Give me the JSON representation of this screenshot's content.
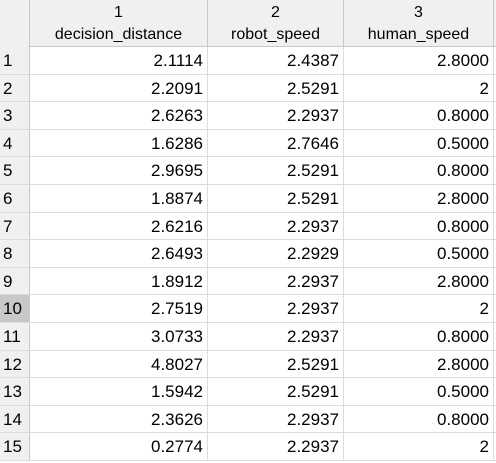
{
  "columns": [
    {
      "number": "1",
      "name": "decision_distance"
    },
    {
      "number": "2",
      "name": "robot_speed"
    },
    {
      "number": "3",
      "name": "human_speed"
    }
  ],
  "selected_row": "10",
  "rows": [
    {
      "index": "1",
      "cells": [
        "2.1114",
        "2.4387",
        "2.8000"
      ]
    },
    {
      "index": "2",
      "cells": [
        "2.2091",
        "2.5291",
        "2"
      ]
    },
    {
      "index": "3",
      "cells": [
        "2.6263",
        "2.2937",
        "0.8000"
      ]
    },
    {
      "index": "4",
      "cells": [
        "1.6286",
        "2.7646",
        "0.5000"
      ]
    },
    {
      "index": "5",
      "cells": [
        "2.9695",
        "2.5291",
        "0.8000"
      ]
    },
    {
      "index": "6",
      "cells": [
        "1.8874",
        "2.5291",
        "2.8000"
      ]
    },
    {
      "index": "7",
      "cells": [
        "2.6216",
        "2.2937",
        "0.8000"
      ]
    },
    {
      "index": "8",
      "cells": [
        "2.6493",
        "2.2929",
        "0.5000"
      ]
    },
    {
      "index": "9",
      "cells": [
        "1.8912",
        "2.2937",
        "2.8000"
      ]
    },
    {
      "index": "10",
      "cells": [
        "2.7519",
        "2.2937",
        "2"
      ]
    },
    {
      "index": "11",
      "cells": [
        "3.0733",
        "2.2937",
        "0.8000"
      ]
    },
    {
      "index": "12",
      "cells": [
        "4.8027",
        "2.5291",
        "2.8000"
      ]
    },
    {
      "index": "13",
      "cells": [
        "1.5942",
        "2.5291",
        "0.5000"
      ]
    },
    {
      "index": "14",
      "cells": [
        "2.3626",
        "2.2937",
        "0.8000"
      ]
    },
    {
      "index": "15",
      "cells": [
        "0.2774",
        "2.2937",
        "2"
      ]
    }
  ]
}
